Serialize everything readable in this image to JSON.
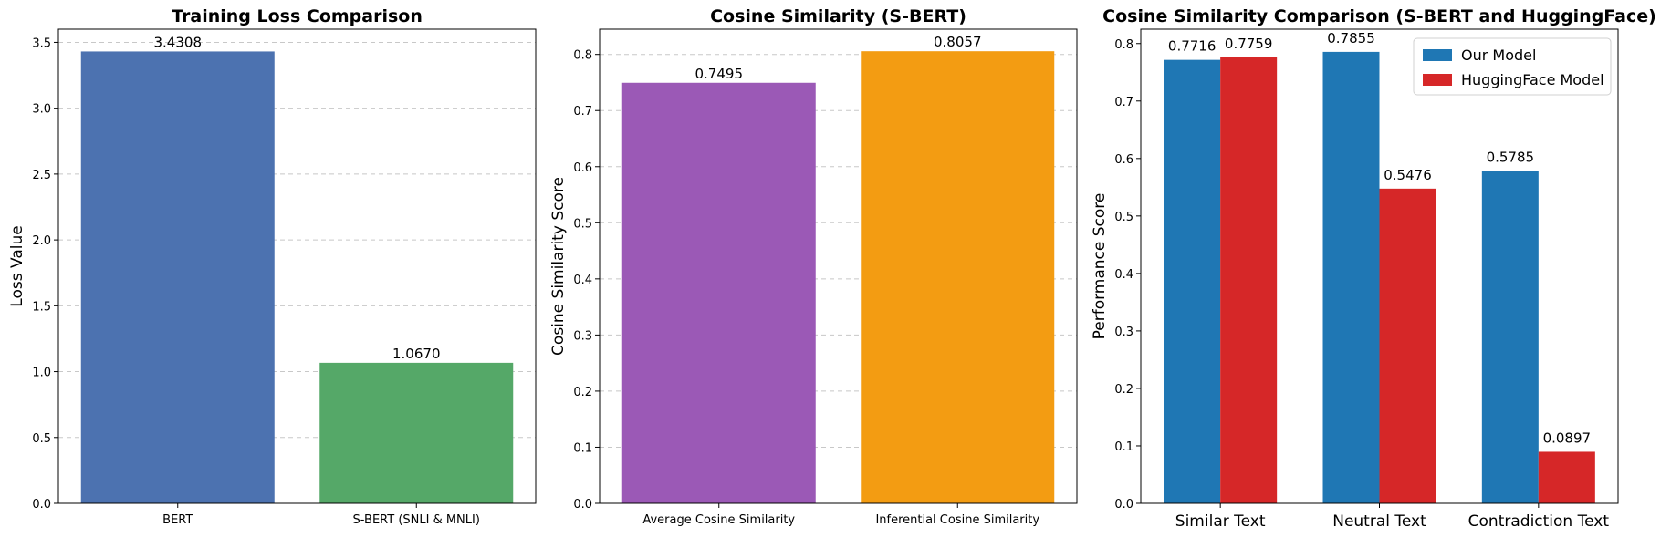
{
  "chart_data": [
    {
      "type": "bar",
      "title": "Training Loss Comparison",
      "xlabel": "",
      "ylabel": "Loss Value",
      "categories": [
        "BERT",
        "S-BERT (SNLI & MNLI)"
      ],
      "values": [
        3.4308,
        1.067
      ],
      "value_labels": [
        "3.4308",
        "1.0670"
      ],
      "colors": [
        "#4c72b0",
        "#55a868"
      ],
      "ylim": [
        0,
        3.6
      ],
      "yticks": [
        0.0,
        0.5,
        1.0,
        1.5,
        2.0,
        2.5,
        3.0,
        3.5
      ],
      "ytick_labels": [
        "0.0",
        "0.5",
        "1.0",
        "1.5",
        "2.0",
        "2.5",
        "3.0",
        "3.5"
      ],
      "grid": "y-dashed"
    },
    {
      "type": "bar",
      "title": "Cosine Similarity (S-BERT)",
      "xlabel": "",
      "ylabel": "Cosine Similarity Score",
      "categories": [
        "Average Cosine Similarity",
        "Inferential Cosine Similarity"
      ],
      "values": [
        0.7495,
        0.8057
      ],
      "value_labels": [
        "0.7495",
        "0.8057"
      ],
      "colors": [
        "#9b59b6",
        "#f39c12"
      ],
      "ylim": [
        0,
        0.845
      ],
      "yticks": [
        0.0,
        0.1,
        0.2,
        0.3,
        0.4,
        0.5,
        0.6,
        0.7,
        0.8
      ],
      "ytick_labels": [
        "0.0",
        "0.1",
        "0.2",
        "0.3",
        "0.4",
        "0.5",
        "0.6",
        "0.7",
        "0.8"
      ],
      "grid": "y-dashed"
    },
    {
      "type": "bar",
      "title": "Cosine Similarity Comparison (S-BERT and HuggingFace)",
      "xlabel": "",
      "ylabel": "Performance Score",
      "categories": [
        "Similar Text",
        "Neutral Text",
        "Contradiction Text"
      ],
      "series": [
        {
          "name": "Our Model",
          "values": [
            0.7716,
            0.7855,
            0.5785
          ],
          "value_labels": [
            "0.7716",
            "0.7855",
            "0.5785"
          ],
          "color": "#1f77b4"
        },
        {
          "name": "HuggingFace Model",
          "values": [
            0.7759,
            0.5476,
            0.0897
          ],
          "value_labels": [
            "0.7759",
            "0.5476",
            "0.0897"
          ],
          "color": "#d62728"
        }
      ],
      "ylim": [
        0,
        0.825
      ],
      "yticks": [
        0.0,
        0.1,
        0.2,
        0.3,
        0.4,
        0.5,
        0.6,
        0.7,
        0.8
      ],
      "ytick_labels": [
        "0.0",
        "0.1",
        "0.2",
        "0.3",
        "0.4",
        "0.5",
        "0.6",
        "0.7",
        "0.8"
      ],
      "grid": "none",
      "legend": "top-right"
    }
  ]
}
